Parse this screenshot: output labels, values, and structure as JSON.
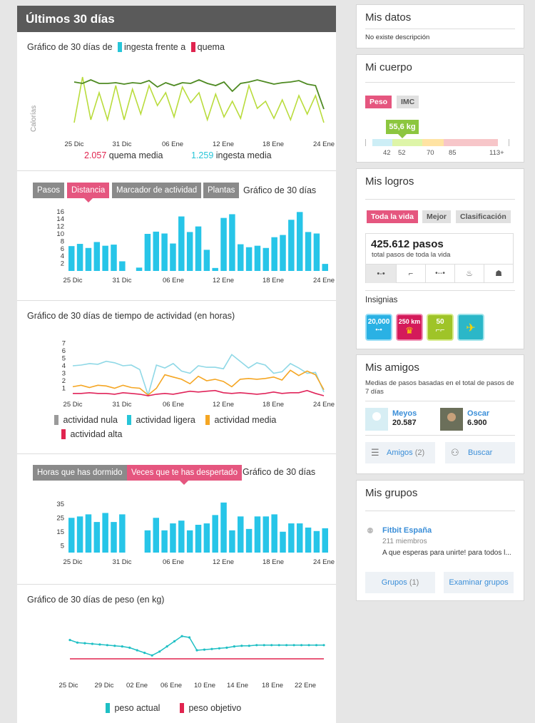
{
  "left_header": {
    "title": "Últimos 30 días"
  },
  "calories": {
    "title_prefix": "Gráfico de 30 días de",
    "intake_label": "ingesta frente a",
    "burn_label": "quema",
    "y_label": "Calorías",
    "x_ticks": [
      "25 Dic",
      "31 Dic",
      "06 Ene",
      "12 Ene",
      "18 Ene",
      "24 Ene"
    ],
    "burn_avg_value": "2.057",
    "burn_avg_label": "quema media",
    "intake_avg_value": "1.259",
    "intake_avg_label": "ingesta media",
    "colors": {
      "burn": "#4e8a22",
      "intake": "#b9dc3c",
      "burn_swatch": "#e0244f",
      "intake_swatch": "#27c5d8"
    }
  },
  "activity": {
    "tabs": [
      "Pasos",
      "Distancia",
      "Marcador de actividad",
      "Plantas"
    ],
    "active_tab": "Distancia",
    "title": "Gráfico de 30 días",
    "y_ticks": [
      "16",
      "14",
      "12",
      "10",
      "8",
      "6",
      "4",
      "2"
    ],
    "x_ticks": [
      "25 Dic",
      "31 Dic",
      "06 Ene",
      "12 Ene",
      "18 Ene",
      "24 Ene"
    ],
    "bar_color": "#27c5e8"
  },
  "active_time": {
    "title": "Gráfico de 30 días de tiempo de actividad (en horas)",
    "y_ticks": [
      "7",
      "6",
      "5",
      "4",
      "3",
      "2",
      "1"
    ],
    "x_ticks": [
      "25 Dic",
      "31 Dic",
      "06 Ene",
      "12 Ene",
      "18 Ene",
      "24 Ene"
    ],
    "legend": [
      "actividad nula",
      "actividad ligera",
      "actividad media",
      "actividad alta"
    ],
    "colors": [
      "#9a9a9a",
      "#27c5d8",
      "#f5a623",
      "#e0244f"
    ],
    "line_colors": {
      "light": "#8fd8e6",
      "medium": "#f5a623",
      "high": "#e0245a"
    }
  },
  "sleep": {
    "tabs": [
      "Horas que has dormido",
      "Veces que te has despertado"
    ],
    "active_tab": "Veces que te has despertado",
    "title": "Gráfico de 30 días",
    "y_ticks": [
      "35",
      "25",
      "15",
      "5"
    ],
    "x_ticks": [
      "25 Dic",
      "31 Dic",
      "06 Ene",
      "12 Ene",
      "18 Ene",
      "24 Ene"
    ],
    "bar_color": "#27c5e8"
  },
  "weight": {
    "title": "Gráfico de 30 días de peso (en kg)",
    "x_ticks": [
      "25 Dic",
      "29 Dic",
      "02 Ene",
      "06 Ene",
      "10 Ene",
      "14 Ene",
      "18 Ene",
      "22 Ene"
    ],
    "legend_actual": "peso actual",
    "legend_goal": "peso objetivo",
    "colors": {
      "actual": "#1ebfc4",
      "goal": "#e0244f"
    }
  },
  "my_data": {
    "title": "Mis datos",
    "description": "No existe descripción"
  },
  "my_body": {
    "title": "Mi cuerpo",
    "tabs": [
      "Peso",
      "IMC"
    ],
    "value": "55,6 kg",
    "scale_ticks": [
      "42",
      "52",
      "70",
      "85",
      "113+"
    ]
  },
  "achievements": {
    "title": "Mis logros",
    "tabs": [
      "Toda la vida",
      "Mejor",
      "Clasificación"
    ],
    "total_value": "425.612 pasos",
    "total_label": "total pasos de toda la vida",
    "icons": [
      "steps-icon",
      "stairs-icon",
      "distance-icon",
      "flame-icon",
      "trophy-icon"
    ],
    "badges_label": "Insignias",
    "badges": [
      "20,000",
      "250 km",
      "50",
      ""
    ]
  },
  "friends": {
    "title": "Mis amigos",
    "subtitle": "Medias de pasos basadas en el total de pasos de 7 días",
    "list": [
      {
        "name": "Meyos",
        "steps": "20.587"
      },
      {
        "name": "Oscar",
        "steps": "6.900"
      }
    ],
    "friends_button": "Amigos",
    "friends_count": "(2)",
    "search_button": "Buscar"
  },
  "groups": {
    "title": "Mis grupos",
    "group_name": "Fitbit España",
    "members": "211 miembros",
    "description": "A que esperas para unirte! para todos l...",
    "groups_button": "Grupos",
    "groups_count": "(1)",
    "explore_button": "Examinar grupos"
  }
}
